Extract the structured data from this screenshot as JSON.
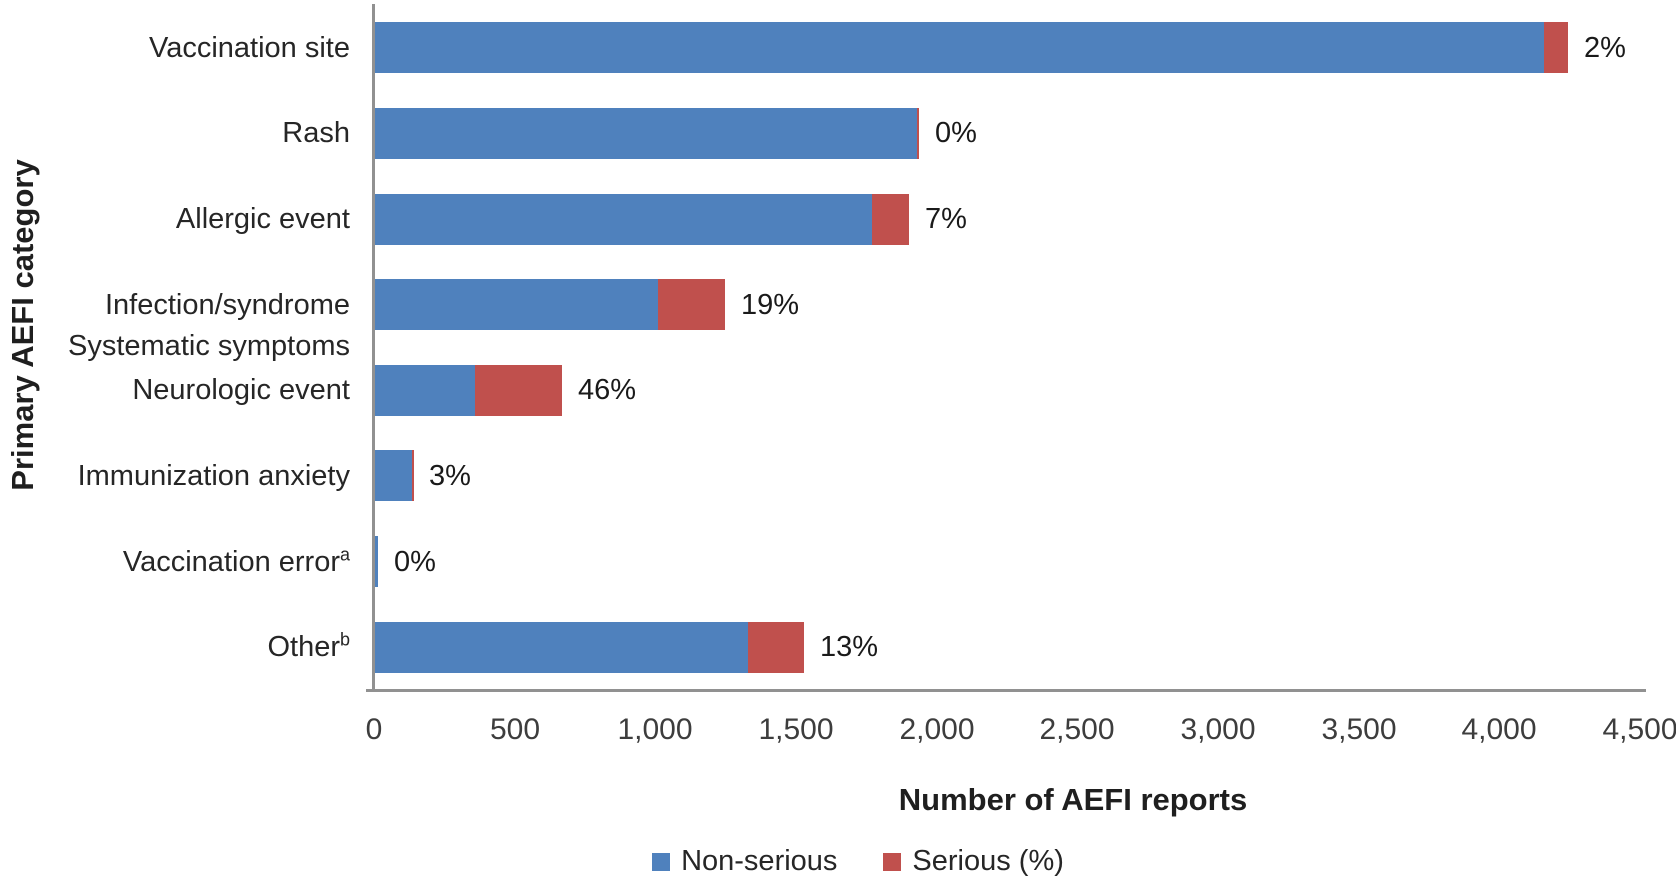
{
  "chart_data": {
    "type": "bar",
    "orientation": "horizontal",
    "stacked": true,
    "title": "",
    "xlabel": "Number of AEFI reports",
    "ylabel": "Primary AEFI category",
    "xlim": [
      0,
      4500
    ],
    "x_tick_values": [
      0,
      500,
      1000,
      1500,
      2000,
      2500,
      3000,
      3500,
      4000,
      4500
    ],
    "x_tick_labels": [
      "0",
      "500",
      "1,000",
      "1,500",
      "2,000",
      "2,500",
      "3,000",
      "3,500",
      "4,000",
      "4,500"
    ],
    "grid": false,
    "legend_position": "bottom-center",
    "series_names": [
      "Non-serious",
      "Serious (%)"
    ],
    "categories": [
      {
        "label": "Vaccination site",
        "sup": "",
        "non_serious": 4160,
        "serious": 85,
        "pct_label": "2%"
      },
      {
        "label": "Rash",
        "sup": "",
        "non_serious": 1930,
        "serious": 8,
        "pct_label": "0%"
      },
      {
        "label": "Allergic event",
        "sup": "",
        "non_serious": 1770,
        "serious": 133,
        "pct_label": "7%"
      },
      {
        "label": "Infection/syndrome",
        "sup": "",
        "non_serious": 1010,
        "serious": 237,
        "pct_label": "19%"
      },
      {
        "label": "Neurologic event",
        "sup": "",
        "non_serious": 360,
        "serious": 307,
        "pct_label": "46%"
      },
      {
        "label": "Immunization anxiety",
        "sup": "",
        "non_serious": 135,
        "serious": 4,
        "pct_label": "3%"
      },
      {
        "label": "Vaccination error",
        "sup": "a",
        "non_serious": 15,
        "serious": 0,
        "pct_label": "0%"
      },
      {
        "label": "Other",
        "sup": "b",
        "non_serious": 1330,
        "serious": 199,
        "pct_label": "13%"
      }
    ],
    "extra_y_label": {
      "text": "Systematic symptoms",
      "between_rows": [
        3,
        4
      ]
    },
    "legend": [
      {
        "label": "Non-serious",
        "color": "#4F81BD"
      },
      {
        "label": "Serious (%)",
        "color": "#C0504D"
      }
    ]
  },
  "colors": {
    "non_serious": "#4F81BD",
    "serious": "#C0504D",
    "axis_line": "#919191",
    "text": "#262626"
  }
}
